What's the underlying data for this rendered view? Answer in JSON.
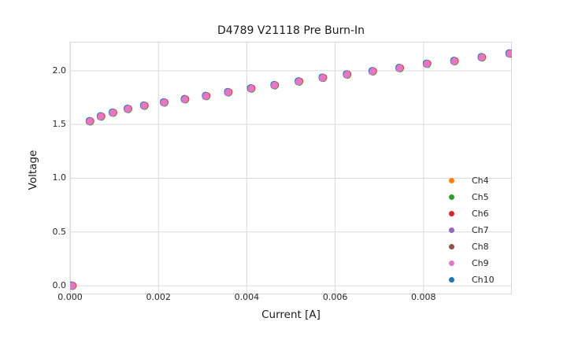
{
  "window": {
    "background": "#ffffff"
  },
  "chart_data": {
    "type": "scatter",
    "title": "D4789 V21118 Pre Burn-In",
    "xlabel": "Current [A]",
    "ylabel": "Voltage",
    "xlim": [
      0.0,
      0.01
    ],
    "ylim": [
      -0.08,
      2.27
    ],
    "xticks": [
      0.0,
      0.002,
      0.004,
      0.006,
      0.008
    ],
    "xtick_labels": [
      "0.000",
      "0.002",
      "0.004",
      "0.006",
      "0.008"
    ],
    "yticks": [
      0.0,
      0.5,
      1.0,
      1.5,
      2.0
    ],
    "ytick_labels": [
      "0.0",
      "0.5",
      "1.0",
      "1.5",
      "2.0"
    ],
    "grid": true,
    "grid_color": "#d9d9d9",
    "legend_position": "lower right inside, no frame",
    "series": [
      {
        "name": "Ch4",
        "color": "#ff7f0e"
      },
      {
        "name": "Ch5",
        "color": "#2ca02c"
      },
      {
        "name": "Ch6",
        "color": "#d62728"
      },
      {
        "name": "Ch7",
        "color": "#9467bd"
      },
      {
        "name": "Ch8",
        "color": "#8c564b"
      },
      {
        "name": "Ch9",
        "color": "#e377c2"
      },
      {
        "name": "Ch10",
        "color": "#1f77b4"
      }
    ],
    "series_note": "All seven channels plot visually identical curves; Ch9 (pink) is drawn on top. Shared point coordinates below.",
    "x": [
      5e-05,
      0.00045,
      0.0007,
      0.00097,
      0.00131,
      0.00168,
      0.00213,
      0.0026,
      0.00308,
      0.00358,
      0.0041,
      0.00463,
      0.00518,
      0.00572,
      0.00627,
      0.00685,
      0.00746,
      0.00808,
      0.0087,
      0.00932,
      0.00995
    ],
    "y": [
      0.0,
      1.53,
      1.575,
      1.61,
      1.645,
      1.675,
      1.705,
      1.735,
      1.765,
      1.8,
      1.835,
      1.865,
      1.9,
      1.935,
      1.965,
      1.995,
      2.025,
      2.065,
      2.09,
      2.125,
      2.16
    ]
  }
}
